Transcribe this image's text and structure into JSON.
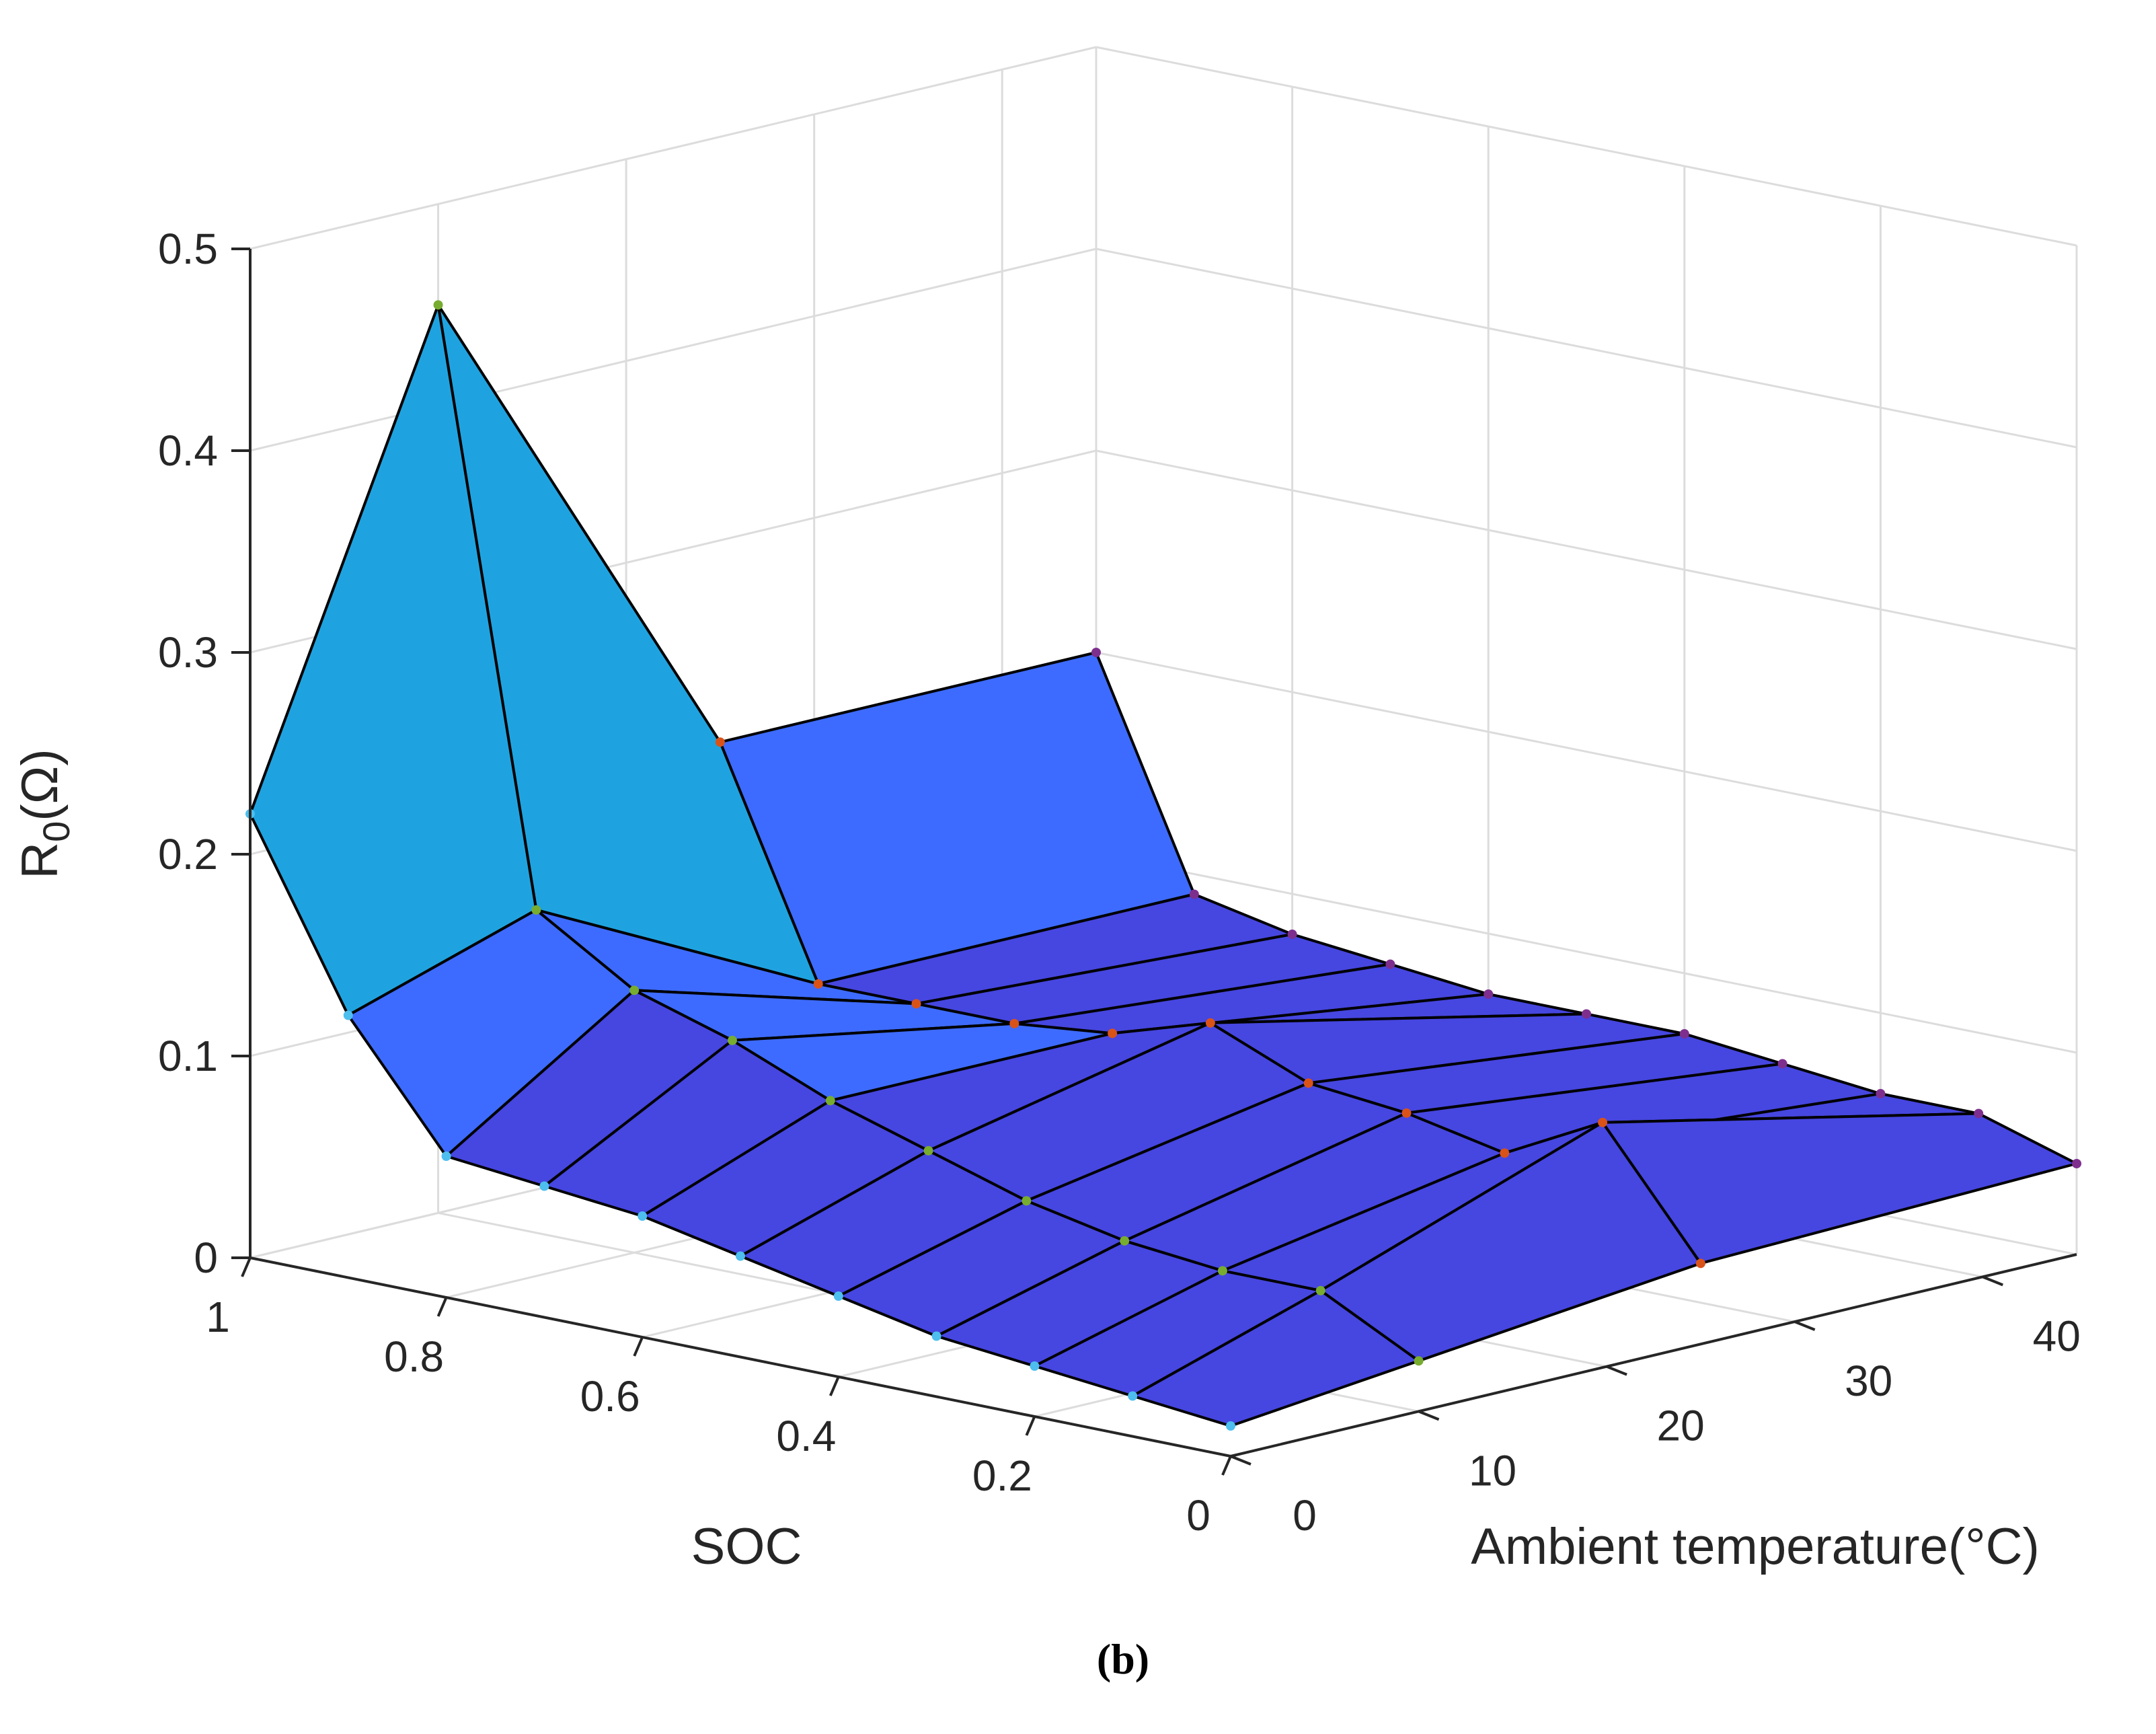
{
  "chart_data": {
    "type": "surface3d",
    "title": "",
    "caption": "(b)",
    "zlabel_main": "R",
    "zlabel_sub": "0",
    "zlabel_unit": "(Ω)",
    "xlabel": "SOC",
    "ylabel": "Ambient temperature(°C)",
    "zlim": [
      0,
      0.5
    ],
    "z_ticks": [
      "0",
      "0.1",
      "0.2",
      "0.3",
      "0.4",
      "0.5"
    ],
    "soc_ticks": [
      "0",
      "0.2",
      "0.4",
      "0.6",
      "0.8",
      "1"
    ],
    "temp_ticks": [
      "0",
      "10",
      "20",
      "30",
      "40"
    ],
    "soc": [
      1,
      0.9,
      0.8,
      0.7,
      0.6,
      0.5,
      0.4,
      0.3,
      0.2,
      0.1,
      0
    ],
    "temperature": [
      0,
      10,
      25,
      45
    ],
    "R0": [
      [
        0.22,
        0.45,
        0.2,
        0.2
      ],
      [
        0.13,
        0.16,
        0.09,
        0.09
      ],
      [
        0.07,
        0.13,
        0.09,
        0.08
      ],
      [
        0.065,
        0.115,
        0.09,
        0.075
      ],
      [
        0.06,
        0.095,
        0.095,
        0.07
      ],
      [
        0.05,
        0.08,
        0.11,
        0.07
      ],
      [
        0.04,
        0.065,
        0.09,
        0.07
      ],
      [
        0.03,
        0.055,
        0.085,
        0.065
      ],
      [
        0.025,
        0.05,
        0.075,
        0.06
      ],
      [
        0.02,
        0.05,
        0.1,
        0.06
      ],
      [
        0.015,
        0.025,
        0.04,
        0.045
      ]
    ],
    "colors": {
      "face_low": "#4646e0",
      "face_mid": "#3d6bff",
      "face_cyan": "#1fa3e0",
      "face_peak": "#f5f51a",
      "edge": "#000000",
      "grid": "#dcdcdc",
      "axis": "#262626"
    }
  }
}
